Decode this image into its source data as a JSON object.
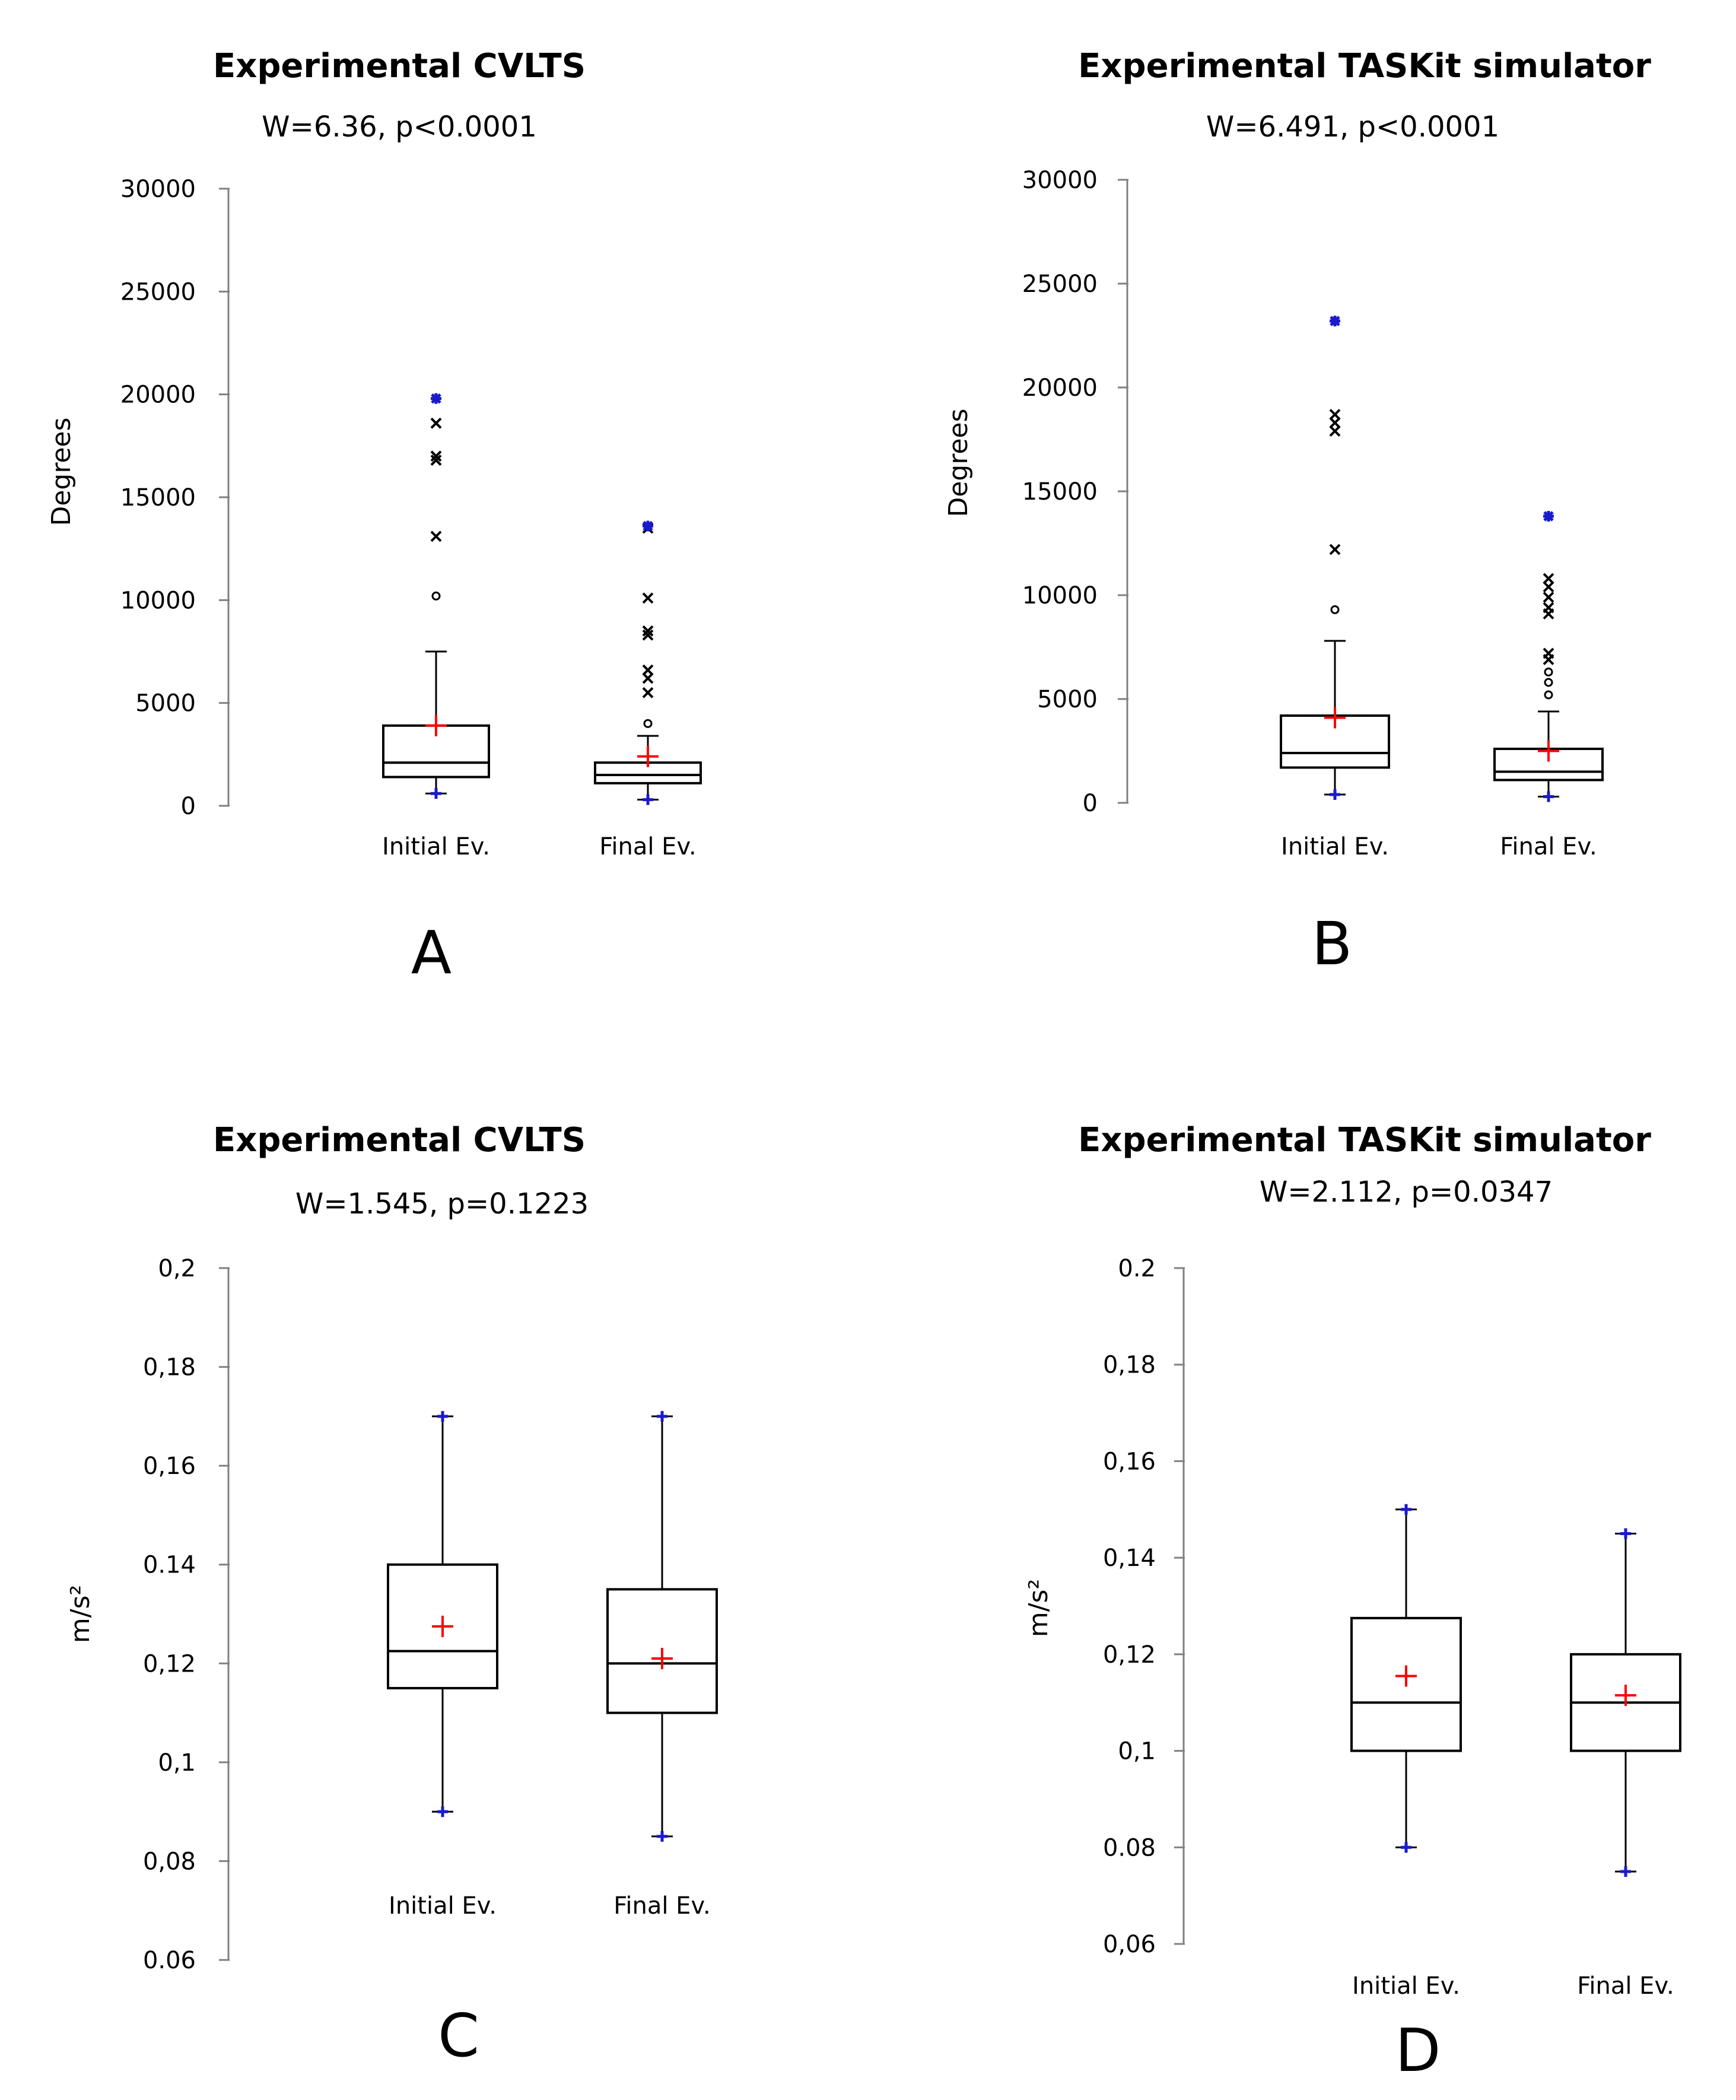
{
  "chart_data": [
    {
      "type": "box",
      "panel": "A",
      "title": "Experimental CVLTS",
      "subtitle": "W=6.36,  p<0.0001",
      "ylabel": "Degrees",
      "xlabel": "",
      "ylim": [
        0,
        30000
      ],
      "yticks": [
        0,
        5000,
        10000,
        15000,
        20000,
        25000,
        30000
      ],
      "ytick_labels": [
        "0",
        "5000",
        "10000",
        "15000",
        "20000",
        "25000",
        "30000"
      ],
      "categories": [
        "Initial Ev.",
        "Final Ev."
      ],
      "boxes": [
        {
          "q1": 1400,
          "median": 2100,
          "q3": 3900,
          "whisker_low": 600,
          "whisker_high": 7500,
          "mean": 3900,
          "min": 600,
          "max": 19800,
          "outliers_circle": [
            10200
          ],
          "outliers_star": [
            13100,
            16800,
            17000,
            18600
          ]
        },
        {
          "q1": 1100,
          "median": 1500,
          "q3": 2100,
          "whisker_low": 300,
          "whisker_high": 3400,
          "mean": 2400,
          "min": 300,
          "max": 13600,
          "outliers_circle": [
            4000
          ],
          "outliers_star": [
            5500,
            6200,
            6600,
            8300,
            8500,
            10100,
            13500
          ]
        }
      ]
    },
    {
      "type": "box",
      "panel": "B",
      "title": "Experimental TASKit simulator",
      "subtitle": "W=6.491,  p<0.0001",
      "ylabel": "Degrees",
      "xlabel": "",
      "ylim": [
        0,
        30000
      ],
      "yticks": [
        0,
        5000,
        10000,
        15000,
        20000,
        25000,
        30000
      ],
      "ytick_labels": [
        "0",
        "5000",
        "10000",
        "15000",
        "20000",
        "25000",
        "30000"
      ],
      "categories": [
        "Initial Ev.",
        "Final Ev."
      ],
      "boxes": [
        {
          "q1": 1700,
          "median": 2400,
          "q3": 4200,
          "whisker_low": 400,
          "whisker_high": 7800,
          "mean": 4100,
          "min": 400,
          "max": 23200,
          "outliers_circle": [
            9300
          ],
          "outliers_star": [
            12200,
            17900,
            18300,
            18700
          ]
        },
        {
          "q1": 1100,
          "median": 1500,
          "q3": 2600,
          "whisker_low": 300,
          "whisker_high": 4400,
          "mean": 2500,
          "min": 300,
          "max": 13800,
          "outliers_circle": [
            5200,
            5800,
            6300
          ],
          "outliers_star": [
            6900,
            7200,
            9100,
            9400,
            9900,
            10400,
            10800
          ]
        }
      ]
    },
    {
      "type": "box",
      "panel": "C",
      "title": "Experimental CVLTS",
      "subtitle": "W=1.545,  p=0.1223",
      "ylabel": "m/s²",
      "xlabel": "",
      "ylim": [
        0.06,
        0.2
      ],
      "yticks": [
        0.06,
        0.08,
        0.1,
        0.12,
        0.14,
        0.16,
        0.18,
        0.2
      ],
      "ytick_labels": [
        "0.06",
        "0,08",
        "0,1",
        "0,12",
        "0.14",
        "0,16",
        "0,18",
        "0,2"
      ],
      "categories": [
        "Initial Ev.",
        "Final Ev."
      ],
      "boxes": [
        {
          "q1": 0.115,
          "median": 0.1225,
          "q3": 0.14,
          "whisker_low": 0.09,
          "whisker_high": 0.17,
          "mean": 0.1275,
          "min": 0.09,
          "max": 0.17,
          "outliers_circle": [],
          "outliers_star": []
        },
        {
          "q1": 0.11,
          "median": 0.12,
          "q3": 0.135,
          "whisker_low": 0.085,
          "whisker_high": 0.17,
          "mean": 0.121,
          "min": 0.085,
          "max": 0.17,
          "outliers_circle": [],
          "outliers_star": []
        }
      ]
    },
    {
      "type": "box",
      "panel": "D",
      "title": "Experimental TASKit simulator",
      "subtitle": "W=2.112,  p=0.0347",
      "ylabel": "m/s²",
      "xlabel": "",
      "ylim": [
        0.06,
        0.2
      ],
      "yticks": [
        0.06,
        0.08,
        0.1,
        0.12,
        0.14,
        0.16,
        0.18,
        0.2
      ],
      "ytick_labels": [
        "0,06",
        "0.08",
        "0,1",
        "0,12",
        "0,14",
        "0,16",
        "0,18",
        "0.2"
      ],
      "categories": [
        "Initial Ev.",
        "Final Ev."
      ],
      "boxes": [
        {
          "q1": 0.1,
          "median": 0.11,
          "q3": 0.1275,
          "whisker_low": 0.08,
          "whisker_high": 0.15,
          "mean": 0.1155,
          "min": 0.08,
          "max": 0.15,
          "outliers_circle": [],
          "outliers_star": []
        },
        {
          "q1": 0.1,
          "median": 0.11,
          "q3": 0.12,
          "whisker_low": 0.075,
          "whisker_high": 0.145,
          "mean": 0.1115,
          "min": 0.075,
          "max": 0.145,
          "outliers_circle": [],
          "outliers_star": []
        }
      ]
    }
  ],
  "colors": {
    "mean_marker": "#ff0000",
    "extreme_marker": "#1a1acc",
    "axis": "#808080",
    "box": "#000000"
  }
}
